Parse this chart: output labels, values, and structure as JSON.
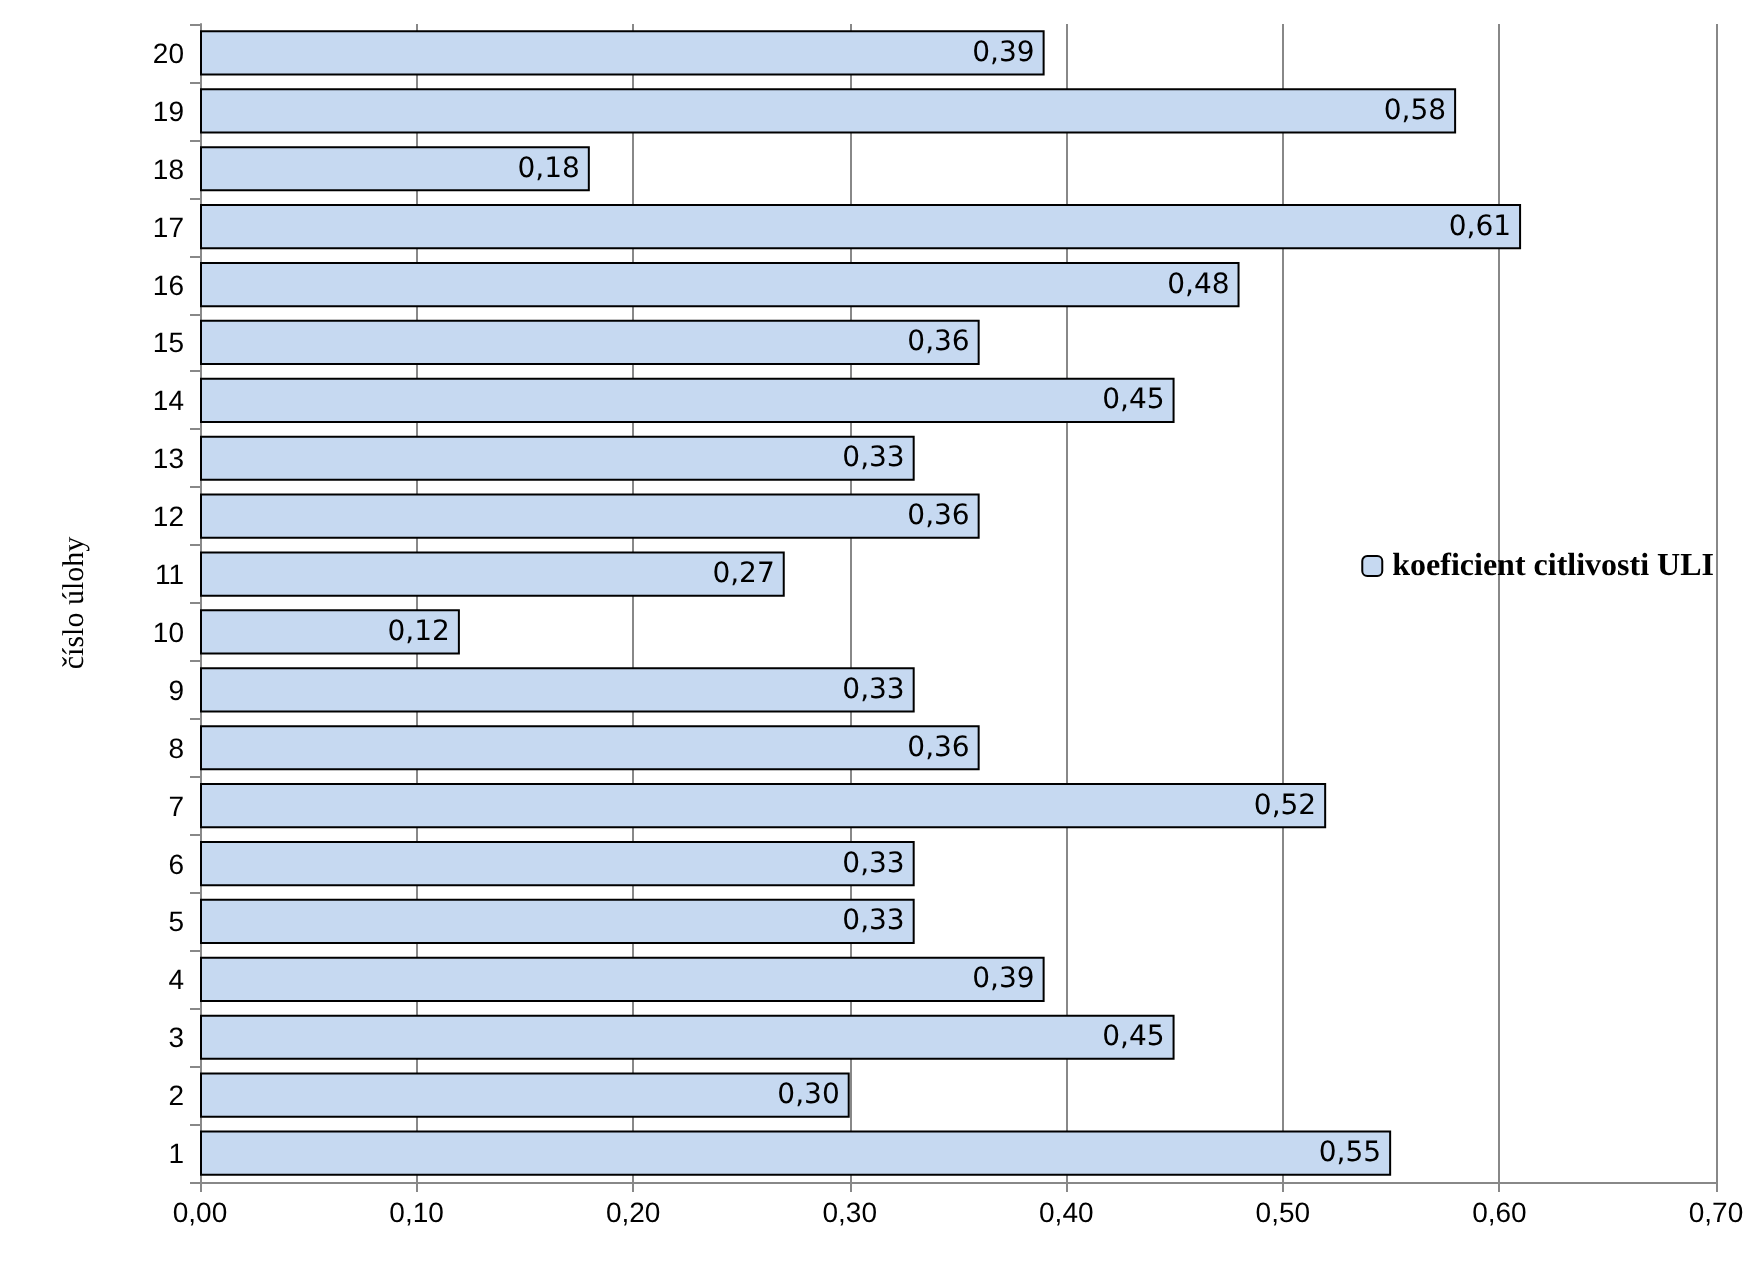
{
  "chart_data": {
    "type": "bar",
    "orientation": "horizontal",
    "ylabel": "číslo úlohy",
    "categories": [
      "20",
      "19",
      "18",
      "17",
      "16",
      "15",
      "14",
      "13",
      "12",
      "11",
      "10",
      "9",
      "8",
      "7",
      "6",
      "5",
      "4",
      "3",
      "2",
      "1"
    ],
    "series": [
      {
        "name": "koeficient citlivosti ULI",
        "color": "#c6d9f1",
        "values": [
          0.39,
          0.58,
          0.18,
          0.61,
          0.48,
          0.36,
          0.45,
          0.33,
          0.36,
          0.27,
          0.12,
          0.33,
          0.36,
          0.52,
          0.33,
          0.33,
          0.39,
          0.45,
          0.3,
          0.55
        ],
        "value_labels": [
          "0,39",
          "0,58",
          "0,18",
          "0,61",
          "0,48",
          "0,36",
          "0,45",
          "0,33",
          "0,36",
          "0,27",
          "0,12",
          "0,33",
          "0,36",
          "0,52",
          "0,33",
          "0,33",
          "0,39",
          "0,45",
          "0,30",
          "0,55"
        ]
      }
    ],
    "xlim": [
      0,
      0.7
    ],
    "xticks": [
      {
        "value": 0,
        "label": "0,00"
      },
      {
        "value": 0.1,
        "label": "0,10"
      },
      {
        "value": 0.2,
        "label": "0,20"
      },
      {
        "value": 0.3,
        "label": "0,30"
      },
      {
        "value": 0.4,
        "label": "0,40"
      },
      {
        "value": 0.5,
        "label": "0,50"
      },
      {
        "value": 0.6,
        "label": "0,60"
      },
      {
        "value": 0.7,
        "label": "0,70"
      }
    ],
    "grid": "x",
    "legend": "right"
  }
}
